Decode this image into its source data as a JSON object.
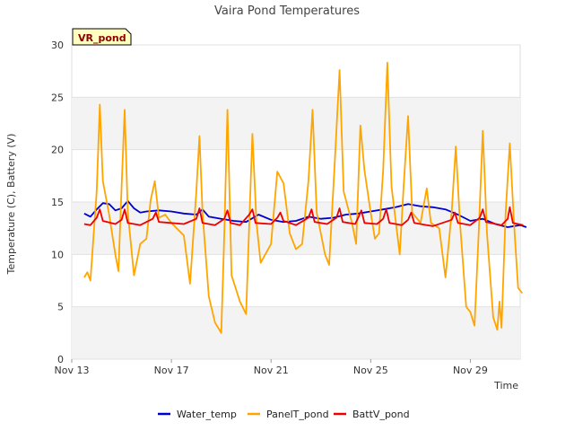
{
  "chart_data": {
    "type": "line",
    "title": "Vaira Pond Temperatures",
    "xlabel": "Time",
    "ylabel": "Temperature (C), Battery (V)",
    "badge": "VR_pond",
    "ylim": [
      0,
      30
    ],
    "yticks": [
      0,
      5,
      10,
      15,
      20,
      25,
      30
    ],
    "xlim": [
      "2023-11-13",
      "2023-12-01"
    ],
    "xtick_labels": [
      {
        "x": "2023-11-13",
        "label": "Nov 13"
      },
      {
        "x": "2023-11-17",
        "label": "Nov 17"
      },
      {
        "x": "2023-11-21",
        "label": "Nov 21"
      },
      {
        "x": "2023-11-25",
        "label": "Nov 25"
      },
      {
        "x": "2023-11-29",
        "label": "Nov 29"
      }
    ],
    "grid": "horizontal bands",
    "legend_position": "bottom",
    "series": [
      {
        "name": "Water_temp",
        "color": "#0000cc",
        "points": [
          [
            "2023-11-13 12:00",
            13.9
          ],
          [
            "2023-11-13 18:00",
            13.6
          ],
          [
            "2023-11-14 00:00",
            14.3
          ],
          [
            "2023-11-14 06:00",
            14.9
          ],
          [
            "2023-11-14 12:00",
            14.8
          ],
          [
            "2023-11-14 18:00",
            14.2
          ],
          [
            "2023-11-15 00:00",
            14.4
          ],
          [
            "2023-11-15 06:00",
            15.1
          ],
          [
            "2023-11-15 12:00",
            14.4
          ],
          [
            "2023-11-15 18:00",
            14.0
          ],
          [
            "2023-11-16 00:00",
            14.1
          ],
          [
            "2023-11-16 12:00",
            14.2
          ],
          [
            "2023-11-17 00:00",
            14.1
          ],
          [
            "2023-11-17 12:00",
            13.9
          ],
          [
            "2023-11-18 00:00",
            13.8
          ],
          [
            "2023-11-18 06:00",
            14.3
          ],
          [
            "2023-11-18 12:00",
            13.6
          ],
          [
            "2023-11-19 00:00",
            13.4
          ],
          [
            "2023-11-19 12:00",
            13.2
          ],
          [
            "2023-11-20 00:00",
            13.1
          ],
          [
            "2023-11-20 12:00",
            13.8
          ],
          [
            "2023-11-21 00:00",
            13.3
          ],
          [
            "2023-11-21 12:00",
            13.1
          ],
          [
            "2023-11-22 00:00",
            13.2
          ],
          [
            "2023-11-22 12:00",
            13.6
          ],
          [
            "2023-11-23 00:00",
            13.4
          ],
          [
            "2023-11-23 12:00",
            13.5
          ],
          [
            "2023-11-24 00:00",
            13.8
          ],
          [
            "2023-11-24 12:00",
            13.9
          ],
          [
            "2023-11-25 00:00",
            14.1
          ],
          [
            "2023-11-25 12:00",
            14.3
          ],
          [
            "2023-11-26 00:00",
            14.5
          ],
          [
            "2023-11-26 12:00",
            14.8
          ],
          [
            "2023-11-27 00:00",
            14.6
          ],
          [
            "2023-11-27 12:00",
            14.5
          ],
          [
            "2023-11-28 00:00",
            14.3
          ],
          [
            "2023-11-28 12:00",
            13.8
          ],
          [
            "2023-11-29 00:00",
            13.2
          ],
          [
            "2023-11-29 12:00",
            13.4
          ],
          [
            "2023-11-30 00:00",
            12.9
          ],
          [
            "2023-11-30 12:00",
            12.6
          ],
          [
            "2023-12-01 00:00",
            12.8
          ],
          [
            "2023-12-01 06:00",
            12.6
          ]
        ]
      },
      {
        "name": "PanelT_pond",
        "color": "#ffa500",
        "points": [
          [
            "2023-11-13 12:00",
            7.8
          ],
          [
            "2023-11-13 15:00",
            8.3
          ],
          [
            "2023-11-13 18:00",
            7.5
          ],
          [
            "2023-11-14 00:00",
            16.0
          ],
          [
            "2023-11-14 03:00",
            24.3
          ],
          [
            "2023-11-14 06:00",
            17.0
          ],
          [
            "2023-11-14 12:00",
            13.8
          ],
          [
            "2023-11-14 18:00",
            10.0
          ],
          [
            "2023-11-14 21:00",
            8.4
          ],
          [
            "2023-11-15 00:00",
            16.5
          ],
          [
            "2023-11-15 03:00",
            23.8
          ],
          [
            "2023-11-15 06:00",
            14.0
          ],
          [
            "2023-11-15 12:00",
            8.0
          ],
          [
            "2023-11-15 18:00",
            11.0
          ],
          [
            "2023-11-16 00:00",
            11.5
          ],
          [
            "2023-11-16 04:00",
            15.2
          ],
          [
            "2023-11-16 08:00",
            17.0
          ],
          [
            "2023-11-16 12:00",
            13.5
          ],
          [
            "2023-11-16 18:00",
            13.8
          ],
          [
            "2023-11-17 00:00",
            13.0
          ],
          [
            "2023-11-17 12:00",
            11.8
          ],
          [
            "2023-11-17 18:00",
            7.2
          ],
          [
            "2023-11-18 00:00",
            16.0
          ],
          [
            "2023-11-18 03:00",
            21.3
          ],
          [
            "2023-11-18 06:00",
            14.0
          ],
          [
            "2023-11-18 12:00",
            6.0
          ],
          [
            "2023-11-18 18:00",
            3.5
          ],
          [
            "2023-11-19 00:00",
            2.5
          ],
          [
            "2023-11-19 03:00",
            12.0
          ],
          [
            "2023-11-19 06:00",
            23.8
          ],
          [
            "2023-11-19 10:00",
            8.0
          ],
          [
            "2023-11-19 18:00",
            5.5
          ],
          [
            "2023-11-20 00:00",
            4.3
          ],
          [
            "2023-11-20 06:00",
            21.5
          ],
          [
            "2023-11-20 10:00",
            13.0
          ],
          [
            "2023-11-20 14:00",
            9.2
          ],
          [
            "2023-11-21 00:00",
            11.0
          ],
          [
            "2023-11-21 06:00",
            17.9
          ],
          [
            "2023-11-21 12:00",
            16.8
          ],
          [
            "2023-11-21 18:00",
            12.0
          ],
          [
            "2023-11-22 00:00",
            10.5
          ],
          [
            "2023-11-22 06:00",
            11.0
          ],
          [
            "2023-11-22 12:00",
            17.0
          ],
          [
            "2023-11-22 16:00",
            23.8
          ],
          [
            "2023-11-22 20:00",
            14.0
          ],
          [
            "2023-11-23 04:00",
            10.0
          ],
          [
            "2023-11-23 08:00",
            9.0
          ],
          [
            "2023-11-23 14:00",
            20.0
          ],
          [
            "2023-11-23 18:00",
            27.6
          ],
          [
            "2023-11-23 22:00",
            16.0
          ],
          [
            "2023-11-24 06:00",
            13.0
          ],
          [
            "2023-11-24 10:00",
            11.0
          ],
          [
            "2023-11-24 14:00",
            22.3
          ],
          [
            "2023-11-24 18:00",
            18.0
          ],
          [
            "2023-11-25 00:00",
            14.0
          ],
          [
            "2023-11-25 04:00",
            11.5
          ],
          [
            "2023-11-25 08:00",
            12.0
          ],
          [
            "2023-11-25 12:00",
            18.0
          ],
          [
            "2023-11-25 16:00",
            28.3
          ],
          [
            "2023-11-25 20:00",
            16.5
          ],
          [
            "2023-11-26 04:00",
            10.0
          ],
          [
            "2023-11-26 08:00",
            17.0
          ],
          [
            "2023-11-26 12:00",
            23.2
          ],
          [
            "2023-11-26 16:00",
            14.0
          ],
          [
            "2023-11-27 00:00",
            13.0
          ],
          [
            "2023-11-27 06:00",
            16.3
          ],
          [
            "2023-11-27 10:00",
            13.0
          ],
          [
            "2023-11-27 18:00",
            12.5
          ],
          [
            "2023-11-28 00:00",
            7.8
          ],
          [
            "2023-11-28 06:00",
            14.0
          ],
          [
            "2023-11-28 10:00",
            20.3
          ],
          [
            "2023-11-28 14:00",
            13.0
          ],
          [
            "2023-11-28 20:00",
            5.0
          ],
          [
            "2023-11-29 00:00",
            4.5
          ],
          [
            "2023-11-29 04:00",
            3.2
          ],
          [
            "2023-11-29 08:00",
            12.0
          ],
          [
            "2023-11-29 12:00",
            21.8
          ],
          [
            "2023-11-29 16:00",
            12.0
          ],
          [
            "2023-11-29 22:00",
            4.0
          ],
          [
            "2023-11-30 02:00",
            2.8
          ],
          [
            "2023-11-30 04:00",
            5.5
          ],
          [
            "2023-11-30 06:00",
            3.0
          ],
          [
            "2023-11-30 10:00",
            14.0
          ],
          [
            "2023-11-30 14:00",
            20.6
          ],
          [
            "2023-11-30 18:00",
            13.0
          ],
          [
            "2023-11-30 22:00",
            6.8
          ],
          [
            "2023-12-01 02:00",
            6.3
          ]
        ]
      },
      {
        "name": "BattV_pond",
        "color": "#ee0000",
        "points": [
          [
            "2023-11-13 12:00",
            12.9
          ],
          [
            "2023-11-13 18:00",
            12.8
          ],
          [
            "2023-11-14 00:00",
            13.5
          ],
          [
            "2023-11-14 03:00",
            14.3
          ],
          [
            "2023-11-14 06:00",
            13.2
          ],
          [
            "2023-11-14 18:00",
            12.9
          ],
          [
            "2023-11-15 00:00",
            13.3
          ],
          [
            "2023-11-15 03:00",
            14.3
          ],
          [
            "2023-11-15 06:00",
            13.0
          ],
          [
            "2023-11-15 18:00",
            12.8
          ],
          [
            "2023-11-16 06:00",
            13.4
          ],
          [
            "2023-11-16 09:00",
            14.0
          ],
          [
            "2023-11-16 12:00",
            13.1
          ],
          [
            "2023-11-17 12:00",
            12.9
          ],
          [
            "2023-11-18 00:00",
            13.4
          ],
          [
            "2023-11-18 03:00",
            14.4
          ],
          [
            "2023-11-18 06:00",
            13.0
          ],
          [
            "2023-11-18 18:00",
            12.8
          ],
          [
            "2023-11-19 03:00",
            13.4
          ],
          [
            "2023-11-19 06:00",
            14.2
          ],
          [
            "2023-11-19 09:00",
            13.0
          ],
          [
            "2023-11-19 18:00",
            12.8
          ],
          [
            "2023-11-20 03:00",
            13.8
          ],
          [
            "2023-11-20 06:00",
            14.3
          ],
          [
            "2023-11-20 09:00",
            13.0
          ],
          [
            "2023-11-21 00:00",
            12.9
          ],
          [
            "2023-11-21 06:00",
            13.5
          ],
          [
            "2023-11-21 09:00",
            14.0
          ],
          [
            "2023-11-21 12:00",
            13.2
          ],
          [
            "2023-11-22 00:00",
            12.8
          ],
          [
            "2023-11-22 12:00",
            13.5
          ],
          [
            "2023-11-22 15:00",
            14.3
          ],
          [
            "2023-11-22 18:00",
            13.1
          ],
          [
            "2023-11-23 06:00",
            12.9
          ],
          [
            "2023-11-23 15:00",
            13.5
          ],
          [
            "2023-11-23 18:00",
            14.4
          ],
          [
            "2023-11-23 21:00",
            13.1
          ],
          [
            "2023-11-24 09:00",
            12.9
          ],
          [
            "2023-11-24 12:00",
            13.5
          ],
          [
            "2023-11-24 15:00",
            14.2
          ],
          [
            "2023-11-24 18:00",
            13.0
          ],
          [
            "2023-11-25 06:00",
            12.9
          ],
          [
            "2023-11-25 12:00",
            13.4
          ],
          [
            "2023-11-25 15:00",
            14.3
          ],
          [
            "2023-11-25 18:00",
            13.0
          ],
          [
            "2023-11-26 06:00",
            12.8
          ],
          [
            "2023-11-26 12:00",
            13.3
          ],
          [
            "2023-11-26 15:00",
            14.0
          ],
          [
            "2023-11-26 18:00",
            13.0
          ],
          [
            "2023-11-27 06:00",
            12.8
          ],
          [
            "2023-11-27 12:00",
            12.7
          ],
          [
            "2023-11-28 06:00",
            13.3
          ],
          [
            "2023-11-28 09:00",
            14.0
          ],
          [
            "2023-11-28 12:00",
            13.0
          ],
          [
            "2023-11-29 00:00",
            12.8
          ],
          [
            "2023-11-29 09:00",
            13.5
          ],
          [
            "2023-11-29 12:00",
            14.3
          ],
          [
            "2023-11-29 15:00",
            13.1
          ],
          [
            "2023-11-30 06:00",
            12.8
          ],
          [
            "2023-11-30 12:00",
            13.4
          ],
          [
            "2023-11-30 14:00",
            14.5
          ],
          [
            "2023-11-30 17:00",
            13.0
          ],
          [
            "2023-12-01 03:00",
            12.8
          ]
        ]
      }
    ]
  }
}
